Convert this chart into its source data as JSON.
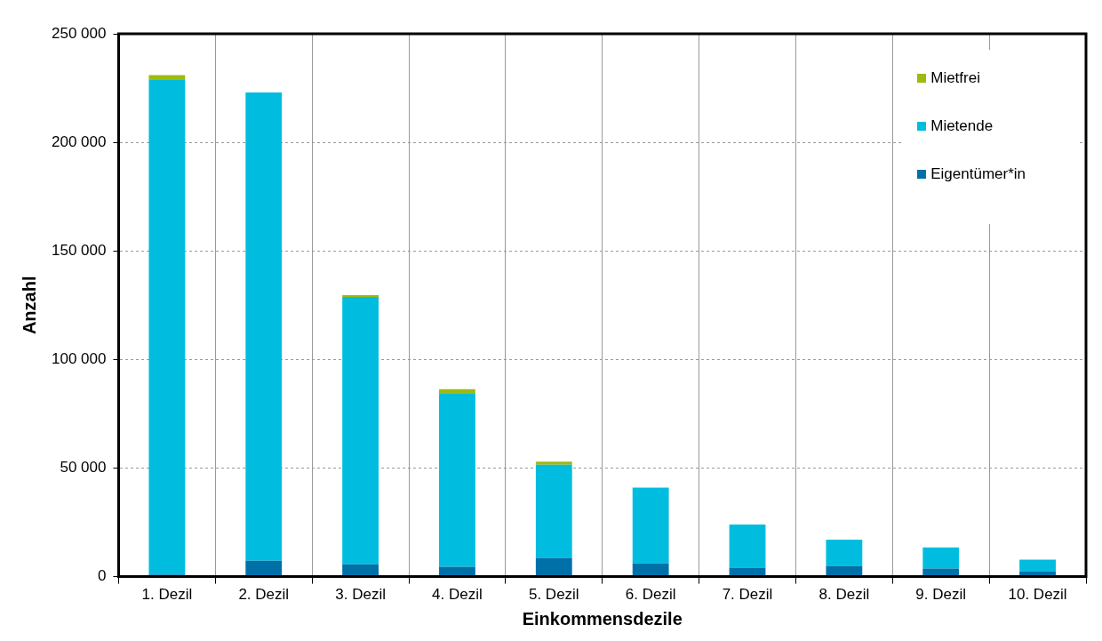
{
  "chart_data": {
    "type": "bar",
    "stacked": true,
    "xlabel": "Einkommensdezile",
    "ylabel": "Anzahl",
    "categories": [
      "1. Dezil",
      "2. Dezil",
      "3. Dezil",
      "4. Dezil",
      "5. Dezil",
      "6. Dezil",
      "7. Dezil",
      "8. Dezil",
      "9. Dezil",
      "10. Dezil"
    ],
    "series": [
      {
        "name": "Eigentümer*in",
        "color": "#0070a8",
        "values": [
          1000,
          7300,
          5700,
          4500,
          8600,
          6100,
          4100,
          5000,
          3700,
          2500
        ]
      },
      {
        "name": "Mietende",
        "color": "#00bde0",
        "values": [
          228000,
          215700,
          123100,
          79700,
          42900,
          34900,
          19900,
          12000,
          9800,
          5300
        ]
      },
      {
        "name": "Mietfrei",
        "color": "#9bbb10",
        "values": [
          2000,
          null,
          800,
          2100,
          1500,
          null,
          null,
          null,
          null,
          null
        ]
      }
    ],
    "ylim": [
      0,
      250000
    ],
    "yticks": [
      {
        "value": 0,
        "label": "0"
      },
      {
        "value": 50000,
        "label": "50 000"
      },
      {
        "value": 100000,
        "label": "100 000"
      },
      {
        "value": 150000,
        "label": "150 000"
      },
      {
        "value": 200000,
        "label": "200 000"
      },
      {
        "value": 250000,
        "label": "250 000"
      }
    ],
    "grid": true,
    "legend": "top right"
  }
}
